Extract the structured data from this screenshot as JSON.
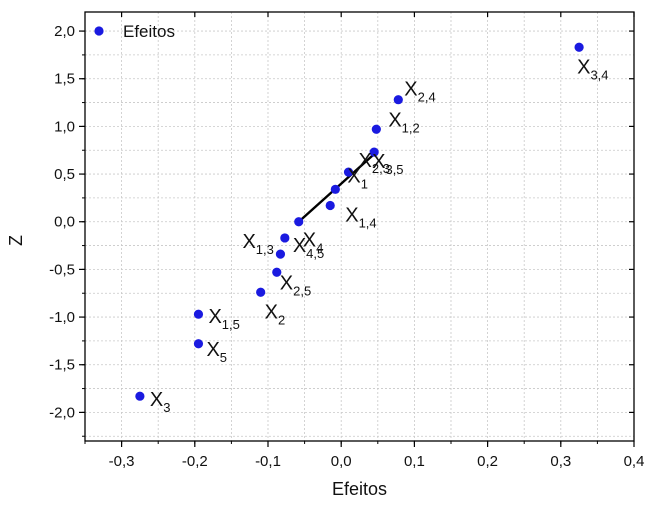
{
  "chart_data": {
    "type": "scatter",
    "xlabel": "Efeitos",
    "ylabel": "Z",
    "xlim": [
      -0.35,
      0.4
    ],
    "ylim": [
      -2.3,
      2.2
    ],
    "x_ticks": [
      "-0,3",
      "-0,2",
      "-0,1",
      "0,0",
      "0,1",
      "0,2",
      "0,3",
      "0,4"
    ],
    "y_ticks": [
      "-2,0",
      "-1,5",
      "-1,0",
      "-0,5",
      "0,0",
      "0,5",
      "1,0",
      "1,5",
      "2,0"
    ],
    "grid": true,
    "legend": {
      "position": "top-left",
      "entries": [
        "Efeitos"
      ]
    },
    "series": [
      {
        "name": "Efeitos",
        "color": "#1a1ae0",
        "points": [
          {
            "x": -0.275,
            "y": -1.83,
            "label": "X",
            "sub": "3"
          },
          {
            "x": -0.195,
            "y": -1.28,
            "label": "X",
            "sub": "5"
          },
          {
            "x": -0.195,
            "y": -0.97,
            "label": "X",
            "sub": "1,5"
          },
          {
            "x": -0.11,
            "y": -0.74,
            "label": "X",
            "sub": "2"
          },
          {
            "x": -0.088,
            "y": -0.53,
            "label": "X",
            "sub": "2,5"
          },
          {
            "x": -0.083,
            "y": -0.34,
            "label": "X",
            "sub": "1,3"
          },
          {
            "x": -0.077,
            "y": -0.17,
            "label": "X",
            "sub": "4,5"
          },
          {
            "x": -0.058,
            "y": 0.0,
            "label": "X",
            "sub": "4"
          },
          {
            "x": -0.015,
            "y": 0.17,
            "label": "X",
            "sub": "1,4"
          },
          {
            "x": -0.008,
            "y": 0.34,
            "label": "X",
            "sub": "1"
          },
          {
            "x": 0.01,
            "y": 0.52,
            "label": "X",
            "sub": "2,3"
          },
          {
            "x": 0.045,
            "y": 0.73,
            "label": "X",
            "sub": "3,5"
          },
          {
            "x": 0.048,
            "y": 0.97,
            "label": "X",
            "sub": "1,2"
          },
          {
            "x": 0.078,
            "y": 1.28,
            "label": "X",
            "sub": "2,4"
          },
          {
            "x": 0.325,
            "y": 1.83,
            "label": "X",
            "sub": "3,4"
          }
        ]
      }
    ],
    "reference_line": {
      "x": [
        -0.058,
        0.048
      ],
      "y": [
        0.0,
        0.73
      ]
    }
  }
}
